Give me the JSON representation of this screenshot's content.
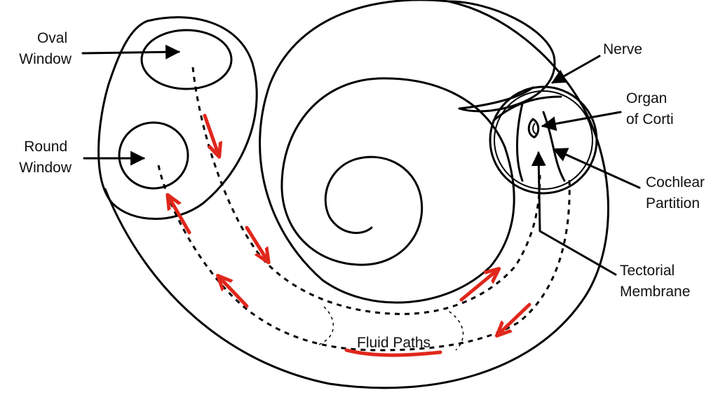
{
  "labels": {
    "oval_window": [
      "Oval",
      "Window"
    ],
    "round_window": [
      "Round",
      "Window"
    ],
    "nerve": "Nerve",
    "organ_of_corti": [
      "Organ",
      "of Corti"
    ],
    "cochlear_partition": [
      "Cochlear",
      "Partition"
    ],
    "tectorial_membrane": [
      "Tectorial",
      "Membrane"
    ],
    "fluid_paths": "Fluid Paths"
  },
  "colors": {
    "outline": "#000000",
    "annotation": "#e0271b",
    "background": "#ffffff"
  }
}
